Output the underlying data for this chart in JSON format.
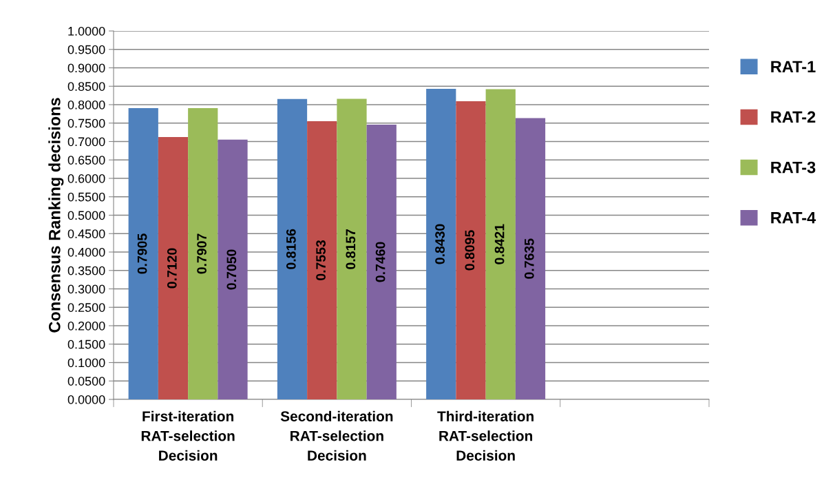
{
  "chart_data": {
    "type": "bar",
    "ylabel": "Consensus Ranking decisions",
    "categories": [
      "First-iteration\nRAT-selection\nDecision",
      "Second-iteration\nRAT-selection\nDecision",
      "Third-iteration\nRAT-selection\nDecision",
      null
    ],
    "series": [
      {
        "name": "RAT-1",
        "color": "#4f81bd",
        "values": [
          0.7905,
          0.8156,
          0.843,
          null
        ],
        "value_labels": [
          "0.7905",
          "0.8156",
          "0.8430",
          null
        ]
      },
      {
        "name": "RAT-2",
        "color": "#c0504d",
        "values": [
          0.712,
          0.7553,
          0.8095,
          null
        ],
        "value_labels": [
          "0.7120",
          "0.7553",
          "0.8095",
          null
        ]
      },
      {
        "name": "RAT-3",
        "color": "#9bbb59",
        "values": [
          0.7907,
          0.8157,
          0.8421,
          null
        ],
        "value_labels": [
          "0.7907",
          "0.8157",
          "0.8421",
          null
        ]
      },
      {
        "name": "RAT-4",
        "color": "#8064a2",
        "values": [
          0.705,
          0.746,
          0.7635,
          null
        ],
        "value_labels": [
          "0.7050",
          "0.7460",
          "0.7635",
          null
        ]
      }
    ],
    "ylim": [
      0,
      1
    ],
    "yticks": [
      {
        "value": 0,
        "label": "0.0000"
      },
      {
        "value": 0.05,
        "label": "0.0500"
      },
      {
        "value": 0.1,
        "label": "0.1000"
      },
      {
        "value": 0.15,
        "label": "0.1500"
      },
      {
        "value": 0.2,
        "label": "0.2000"
      },
      {
        "value": 0.25,
        "label": "0.2500"
      },
      {
        "value": 0.3,
        "label": "0.3000"
      },
      {
        "value": 0.35,
        "label": "0.3500"
      },
      {
        "value": 0.4,
        "label": "0.4000"
      },
      {
        "value": 0.45,
        "label": "0.4500"
      },
      {
        "value": 0.5,
        "label": "0.5000"
      },
      {
        "value": 0.55,
        "label": "0.5500"
      },
      {
        "value": 0.6,
        "label": "0.6000"
      },
      {
        "value": 0.65,
        "label": "0.6500"
      },
      {
        "value": 0.7,
        "label": "0.7000"
      },
      {
        "value": 0.75,
        "label": "0.7500"
      },
      {
        "value": 0.8,
        "label": "0.8000"
      },
      {
        "value": 0.85,
        "label": "0.8500"
      },
      {
        "value": 0.9,
        "label": "0.9000"
      },
      {
        "value": 0.95,
        "label": "0.9500"
      },
      {
        "value": 1,
        "label": "1.0000"
      }
    ],
    "grid": "y",
    "legend": "right"
  }
}
